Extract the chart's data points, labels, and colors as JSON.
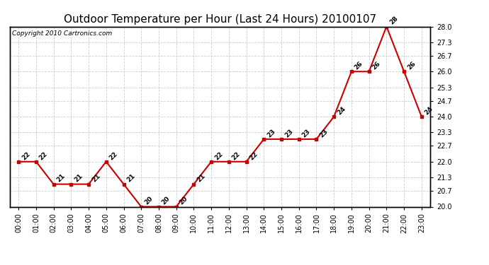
{
  "title": "Outdoor Temperature per Hour (Last 24 Hours) 20100107",
  "copyright": "Copyright 2010 Cartronics.com",
  "hours": [
    "00:00",
    "01:00",
    "02:00",
    "03:00",
    "04:00",
    "05:00",
    "06:00",
    "07:00",
    "08:00",
    "09:00",
    "10:00",
    "11:00",
    "12:00",
    "13:00",
    "14:00",
    "15:00",
    "16:00",
    "17:00",
    "18:00",
    "19:00",
    "20:00",
    "21:00",
    "22:00",
    "23:00"
  ],
  "temperatures": [
    22,
    22,
    21,
    21,
    21,
    22,
    21,
    20,
    20,
    20,
    21,
    22,
    22,
    22,
    23,
    23,
    23,
    23,
    24,
    26,
    26,
    28,
    26,
    24
  ],
  "line_color": "#cc0000",
  "marker_color": "#cc0000",
  "background_color": "#ffffff",
  "grid_color": "#cccccc",
  "ylim_min": 20.0,
  "ylim_max": 28.0,
  "yticks": [
    20.0,
    20.7,
    21.3,
    22.0,
    22.7,
    23.3,
    24.0,
    24.7,
    25.3,
    26.0,
    26.7,
    27.3,
    28.0
  ],
  "title_fontsize": 11,
  "label_fontsize": 7,
  "annot_fontsize": 6.5,
  "copyright_fontsize": 6.5
}
